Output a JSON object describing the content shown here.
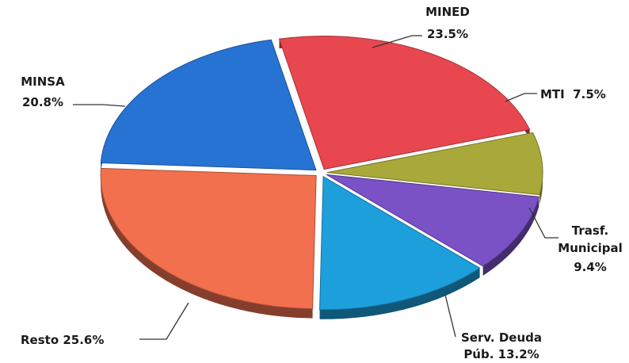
{
  "chart_data": {
    "type": "pie",
    "title": "",
    "slices": [
      {
        "name": "MINED",
        "value": 23.5,
        "label": "23.5%",
        "color": "#e8474f"
      },
      {
        "name": "MTI",
        "value": 7.5,
        "label": "7.5%",
        "color": "#a9a83a"
      },
      {
        "name": "Trasf. Municipal",
        "value": 9.4,
        "label": "9.4%",
        "color": "#7a52c6"
      },
      {
        "name": "Serv. Deuda Púb.",
        "value": 13.2,
        "label": "13.2%",
        "color": "#1d9fdc"
      },
      {
        "name": "Resto",
        "value": 25.6,
        "label": "25.6%",
        "color": "#f2704e"
      },
      {
        "name": "MINSA",
        "value": 20.8,
        "label": "20.8%",
        "color": "#2773d4"
      }
    ],
    "legend": "none",
    "style": "3d-exploded"
  },
  "labels": {
    "mined_name": "MINED",
    "mined_value": "23.5%",
    "mti": "MTI  7.5%",
    "trasf_line1": "Trasf.",
    "trasf_line2": "Municipal",
    "trasf_value": "9.4%",
    "serv_line1": "Serv. Deuda",
    "serv_line2": "Púb. 13.2%",
    "resto": "Resto 25.6%",
    "minsa_name": "MINSA",
    "minsa_value": "20.8%"
  }
}
